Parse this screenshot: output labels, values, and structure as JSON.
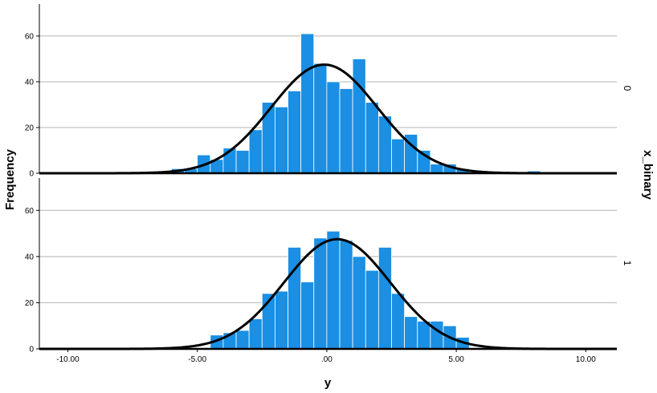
{
  "chart_data": {
    "type": "histogram",
    "xlabel": "y",
    "ylabel": "Frequency",
    "facet_label": "x_binary",
    "xlim": [
      -11.1,
      11.2
    ],
    "ylim": [
      0,
      74
    ],
    "x_ticks": [
      -10,
      -5,
      0,
      5,
      10
    ],
    "x_tick_labels": [
      "-10.00",
      "-5.00",
      ".00",
      "5.00",
      "10.00"
    ],
    "y_ticks": [
      0,
      20,
      40,
      60
    ],
    "y_tick_labels": [
      "0",
      "20",
      "40",
      "60"
    ],
    "bin_width": 0.5,
    "grid": true,
    "bar_color": "#1a8fe3",
    "curve_color": "#000000",
    "panels": [
      {
        "label": "0",
        "bins": [
          {
            "x0": -6.0,
            "count": 2
          },
          {
            "x0": -5.5,
            "count": 2
          },
          {
            "x0": -5.0,
            "count": 8
          },
          {
            "x0": -4.5,
            "count": 6
          },
          {
            "x0": -4.0,
            "count": 11
          },
          {
            "x0": -3.5,
            "count": 10
          },
          {
            "x0": -3.0,
            "count": 19
          },
          {
            "x0": -2.5,
            "count": 31
          },
          {
            "x0": -2.0,
            "count": 29
          },
          {
            "x0": -1.5,
            "count": 36
          },
          {
            "x0": -1.0,
            "count": 61
          },
          {
            "x0": -0.5,
            "count": 48
          },
          {
            "x0": 0.0,
            "count": 40
          },
          {
            "x0": 0.5,
            "count": 37
          },
          {
            "x0": 1.0,
            "count": 50
          },
          {
            "x0": 1.5,
            "count": 31
          },
          {
            "x0": 2.0,
            "count": 25
          },
          {
            "x0": 2.5,
            "count": 15
          },
          {
            "x0": 3.0,
            "count": 17
          },
          {
            "x0": 3.5,
            "count": 10
          },
          {
            "x0": 4.0,
            "count": 4
          },
          {
            "x0": 4.5,
            "count": 4
          },
          {
            "x0": 5.0,
            "count": 2
          },
          {
            "x0": 7.75,
            "count": 1
          }
        ],
        "normal_curve": {
          "mean": -0.1,
          "sd": 2.05,
          "peak": 47.5
        }
      },
      {
        "label": "1",
        "bins": [
          {
            "x0": -4.5,
            "count": 6
          },
          {
            "x0": -4.0,
            "count": 7
          },
          {
            "x0": -3.5,
            "count": 8
          },
          {
            "x0": -3.0,
            "count": 13
          },
          {
            "x0": -2.5,
            "count": 24
          },
          {
            "x0": -2.0,
            "count": 25
          },
          {
            "x0": -1.5,
            "count": 44
          },
          {
            "x0": -1.0,
            "count": 29
          },
          {
            "x0": -0.5,
            "count": 48
          },
          {
            "x0": 0.0,
            "count": 51
          },
          {
            "x0": 0.5,
            "count": 47
          },
          {
            "x0": 1.0,
            "count": 40
          },
          {
            "x0": 1.5,
            "count": 34
          },
          {
            "x0": 2.0,
            "count": 44
          },
          {
            "x0": 2.5,
            "count": 24
          },
          {
            "x0": 3.0,
            "count": 14
          },
          {
            "x0": 3.5,
            "count": 12
          },
          {
            "x0": 4.0,
            "count": 12
          },
          {
            "x0": 4.5,
            "count": 10
          },
          {
            "x0": 5.0,
            "count": 5
          }
        ],
        "normal_curve": {
          "mean": 0.4,
          "sd": 2.05,
          "peak": 47.5
        }
      }
    ]
  }
}
